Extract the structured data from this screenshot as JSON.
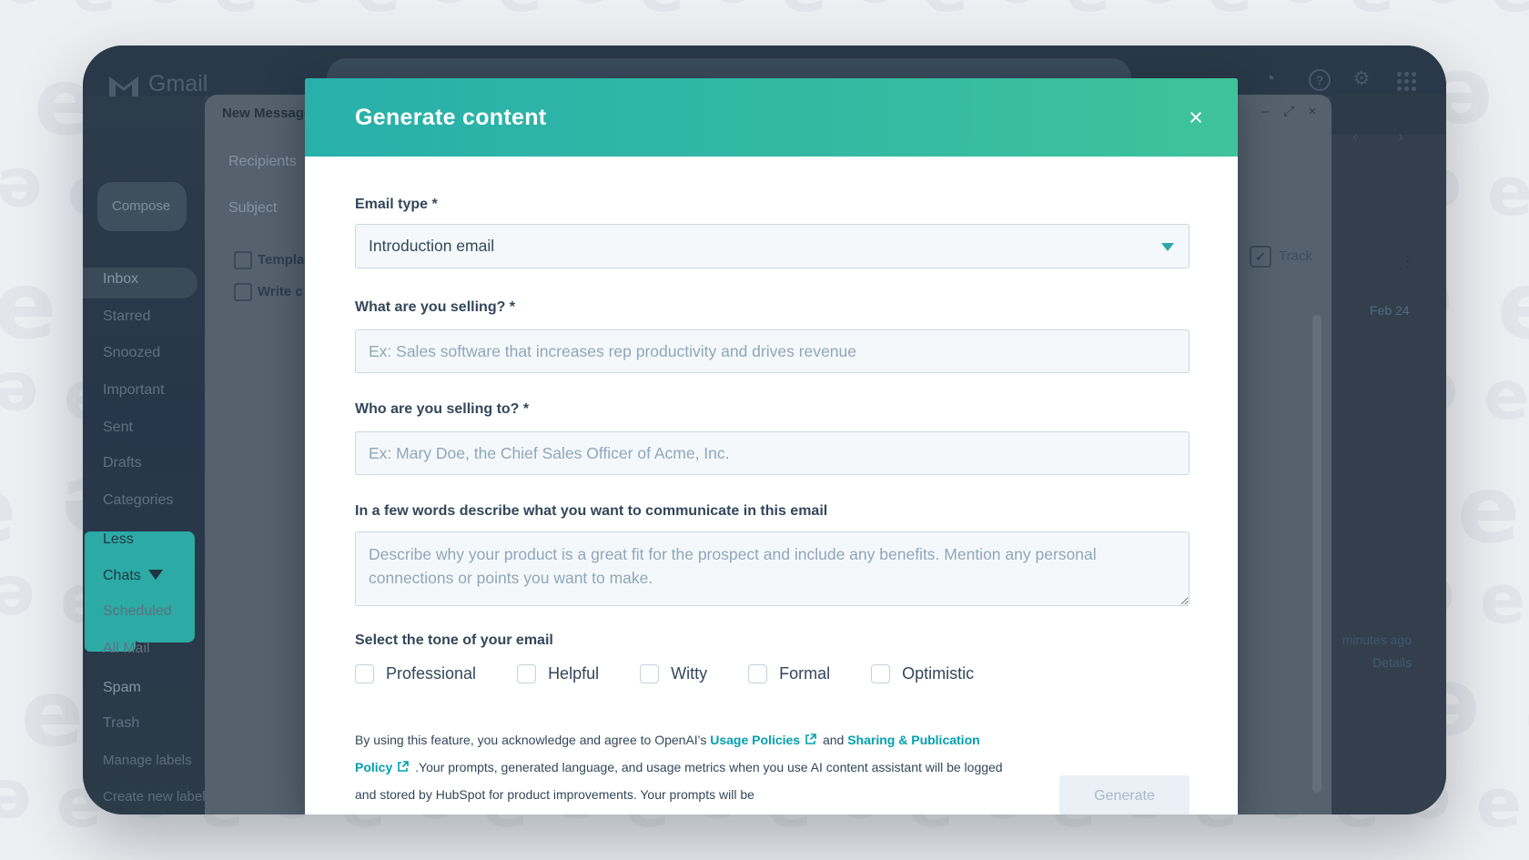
{
  "background": {
    "letter": "e"
  },
  "gmail_chrome": {
    "logo_text": "Gmail",
    "compose_button": "Compose",
    "sidebar": [
      "Inbox",
      "Starred",
      "Snoozed",
      "Important",
      "Sent",
      "Drafts",
      "Categories",
      "Less",
      "Chats",
      "Scheduled",
      "All Mail",
      "Spam",
      "Trash",
      "Manage labels",
      "Create new label"
    ],
    "icons": {
      "clock": "◔",
      "help": "?",
      "gear": "⚙"
    }
  },
  "compose_window": {
    "title": "New Message",
    "recipients_label": "Recipients",
    "subject_label": "Subject",
    "templates_label": "Templates",
    "write_label": "Write c",
    "track_label": "Track",
    "controls": {
      "minimize": "–",
      "popout": "⤢",
      "close": "×"
    }
  },
  "thread_panel": {
    "prev": "‹",
    "next": "›",
    "kebab": "⋮",
    "date": "Feb 24",
    "ago": "minutes ago",
    "details": "Details"
  },
  "modal": {
    "title": "Generate content",
    "close": "×",
    "fields": [
      {
        "label": "Email type *",
        "type": "select",
        "value": "Introduction email"
      },
      {
        "label": "What are you selling? *",
        "type": "input",
        "placeholder": "Ex: Sales software that increases rep productivity and drives revenue"
      },
      {
        "label": "Who are you selling to? *",
        "type": "input",
        "placeholder": "Ex: Mary Doe, the Chief Sales Officer of Acme, Inc."
      },
      {
        "label": "In a few words describe what you want to communicate in this email",
        "type": "textarea",
        "placeholder": "Describe why your product is a great fit for the prospect and include any benefits. Mention any personal connections or points you want to make."
      }
    ],
    "tone_label": "Select the tone of your email",
    "tones": [
      "Professional",
      "Helpful",
      "Witty",
      "Formal",
      "Optimistic"
    ],
    "legal": {
      "part1": "By using this feature, you acknowledge and agree to OpenAI's ",
      "link1": "Usage Policies",
      "part2": " and ",
      "link2": "Sharing & Publication Policy",
      "part3": " .Your prompts, generated language, and usage metrics when you use AI content assistant will be logged and stored by HubSpot for product improvements. Your prompts will be"
    },
    "generate_button": "Generate"
  },
  "colors": {
    "accent_teal": "#28b0ab",
    "accent_green": "#3ec39b",
    "link": "#00a0b0",
    "label_text": "#33475b",
    "placeholder": "#8fa6bb",
    "redaction_teal": "#2caaa5"
  }
}
